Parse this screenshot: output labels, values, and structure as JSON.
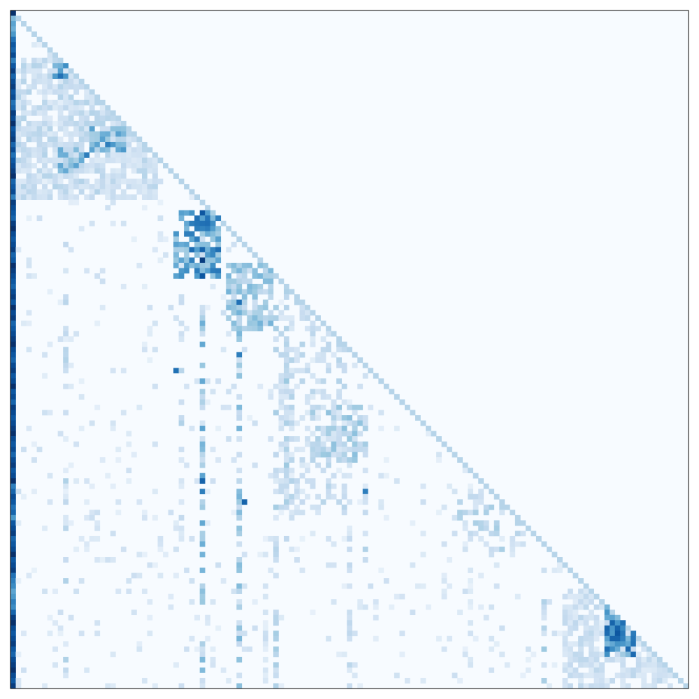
{
  "chart_data": {
    "type": "heatmap",
    "description_rows_cols": 129,
    "title": "",
    "xlabel": "",
    "ylabel": "",
    "legend": "none",
    "grid": false,
    "colormap": "Blues",
    "value_range": [
      0,
      1
    ],
    "colors": {
      "low": "#f7fbff",
      "mid": "#6baed6",
      "high": "#08306b",
      "frame": "#000000"
    },
    "structure": "lower-triangular",
    "diagonal_value": 0.3,
    "first_column_values": [
      1.0,
      0.45,
      0.55,
      0.5,
      0.6,
      0.75,
      0.85,
      0.8,
      0.9,
      0.7,
      0.85,
      0.95,
      0.8,
      0.9,
      0.95,
      0.85,
      0.9,
      0.75,
      0.8,
      0.95,
      0.9,
      1.0,
      0.85,
      0.9,
      0.95,
      0.8,
      0.9,
      0.75,
      0.85,
      0.9,
      0.95,
      1.0,
      0.8,
      0.85,
      0.9,
      0.7,
      0.95,
      0.9,
      0.85,
      0.8,
      0.95,
      1.0,
      0.9,
      0.85,
      0.9,
      0.95,
      0.8,
      0.85,
      1.0,
      0.95,
      0.9,
      0.85,
      0.8,
      0.9,
      0.95,
      0.85,
      1.0,
      0.9,
      0.95,
      0.8,
      0.85,
      0.9,
      0.95,
      1.0,
      0.9,
      0.85,
      0.8,
      0.9,
      0.95,
      0.85,
      0.9,
      1.0,
      0.85,
      0.9,
      0.8,
      0.95,
      0.9,
      0.85,
      0.9,
      0.95,
      1.0,
      0.9,
      0.85,
      0.9,
      0.8,
      0.9,
      0.95,
      0.85,
      0.9,
      1.0,
      0.7,
      0.8,
      0.9,
      0.85,
      0.75,
      0.8,
      0.6,
      0.85,
      0.9,
      0.95,
      0.8,
      0.85,
      0.9,
      1.0,
      0.85,
      0.9,
      0.95,
      0.75,
      0.7,
      0.65,
      0.55,
      0.6,
      0.7,
      0.65,
      0.8,
      0.95,
      1.0,
      0.9,
      0.85,
      0.9,
      0.95,
      0.85,
      0.8,
      0.9,
      0.95,
      1.0,
      0.9,
      0.85,
      0.95
    ],
    "blocks": [
      {
        "rows": [
          9,
          35
        ],
        "cols": [
          1,
          27
        ],
        "value": 0.22,
        "density": 0.75
      },
      {
        "rows": [
          10,
          12
        ],
        "cols": [
          8,
          10
        ],
        "value": 0.5,
        "density": 0.8
      },
      {
        "rows": [
          26,
          30
        ],
        "cols": [
          9,
          13
        ],
        "value": 0.4,
        "density": 0.7
      },
      {
        "rows": [
          22,
          26
        ],
        "cols": [
          15,
          21
        ],
        "value": 0.45,
        "density": 0.7
      },
      {
        "rows": [
          38,
          50
        ],
        "cols": [
          31,
          39
        ],
        "value": 0.55,
        "density": 0.7
      },
      {
        "rows": [
          48,
          60
        ],
        "cols": [
          41,
          49
        ],
        "value": 0.35,
        "density": 0.7
      },
      {
        "rows": [
          55,
          95
        ],
        "cols": [
          51,
          63
        ],
        "value": 0.22,
        "density": 0.45
      },
      {
        "rows": [
          75,
          85
        ],
        "cols": [
          57,
          67
        ],
        "value": 0.3,
        "density": 0.5
      },
      {
        "rows": [
          90,
          103
        ],
        "cols": [
          85,
          97
        ],
        "value": 0.25,
        "density": 0.25
      },
      {
        "rows": [
          110,
          128
        ],
        "cols": [
          105,
          125
        ],
        "value": 0.2,
        "density": 0.7
      },
      {
        "rows": [
          113,
          122
        ],
        "cols": [
          113,
          118
        ],
        "value": 0.6,
        "density": 0.8
      }
    ],
    "strong_columns": [
      {
        "col": 36,
        "rows": [
          38,
          128
        ],
        "value": 0.35,
        "density": 0.55
      },
      {
        "col": 43,
        "rows": [
          49,
          128
        ],
        "value": 0.3,
        "density": 0.5
      },
      {
        "col": 10,
        "rows": [
          38,
          128
        ],
        "value": 0.2,
        "density": 0.3
      },
      {
        "col": 32,
        "rows": [
          52,
          100
        ],
        "value": 0.2,
        "density": 0.35
      },
      {
        "col": 50,
        "rows": [
          53,
          128
        ],
        "value": 0.22,
        "density": 0.35
      },
      {
        "col": 52,
        "rows": [
          53,
          100
        ],
        "value": 0.25,
        "density": 0.45
      },
      {
        "col": 64,
        "rows": [
          80,
          128
        ],
        "value": 0.18,
        "density": 0.3
      },
      {
        "col": 67,
        "rows": [
          82,
          105
        ],
        "value": 0.2,
        "density": 0.35
      },
      {
        "col": 101,
        "rows": [
          101,
          128
        ],
        "value": 0.25,
        "density": 0.45
      },
      {
        "col": 48,
        "rows": [
          108,
          128
        ],
        "value": 0.15,
        "density": 0.4
      },
      {
        "col": 87,
        "rows": [
          105,
          128
        ],
        "value": 0.12,
        "density": 0.35
      }
    ],
    "hot_cells": [
      {
        "row": 38,
        "col": 36,
        "value": 0.85
      },
      {
        "row": 40,
        "col": 36,
        "value": 0.75
      },
      {
        "row": 42,
        "col": 34,
        "value": 0.7
      },
      {
        "row": 45,
        "col": 36,
        "value": 0.8
      },
      {
        "row": 47,
        "col": 36,
        "value": 0.95
      },
      {
        "row": 50,
        "col": 36,
        "value": 0.85
      },
      {
        "row": 55,
        "col": 43,
        "value": 0.75
      },
      {
        "row": 65,
        "col": 43,
        "value": 0.7
      },
      {
        "row": 68,
        "col": 31,
        "value": 0.75
      },
      {
        "row": 89,
        "col": 36,
        "value": 0.8
      },
      {
        "row": 91,
        "col": 36,
        "value": 0.7
      },
      {
        "row": 93,
        "col": 44,
        "value": 0.8
      },
      {
        "row": 91,
        "col": 67,
        "value": 0.7
      },
      {
        "row": 12,
        "col": 9,
        "value": 0.75
      },
      {
        "row": 27,
        "col": 14,
        "value": 0.7
      },
      {
        "row": 25,
        "col": 18,
        "value": 0.7
      },
      {
        "row": 118,
        "col": 115,
        "value": 0.85
      },
      {
        "row": 119,
        "col": 116,
        "value": 0.7
      }
    ],
    "random_seed": 7
  }
}
